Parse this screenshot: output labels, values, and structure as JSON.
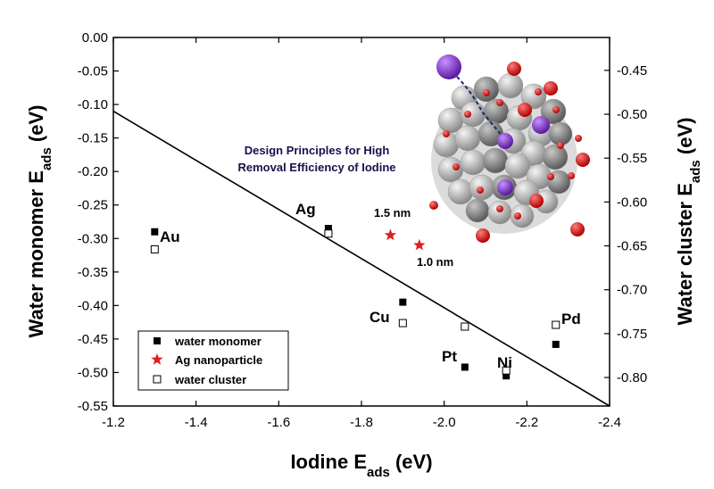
{
  "chart_data": {
    "type": "scatter",
    "xlabel": "Iodine E",
    "xlabel_sub": "ads",
    "xlabel_unit": " (eV)",
    "ylabel": "Water monomer E",
    "ylabel_sub": "ads",
    "ylabel_unit": " (eV)",
    "y2label": "Water cluster E",
    "y2label_sub": "ads",
    "y2label_unit": " (eV)",
    "xlim": [
      -1.2,
      -2.4
    ],
    "ylim": [
      0.0,
      -0.55
    ],
    "y2lim": [
      -0.4125,
      -0.8325
    ],
    "x_ticks": [
      "-1.2",
      "-1.4",
      "-1.6",
      "-1.8",
      "-2.0",
      "-2.2",
      "-2.4"
    ],
    "y_ticks": [
      "0.00",
      "-0.05",
      "-0.10",
      "-0.15",
      "-0.20",
      "-0.25",
      "-0.30",
      "-0.35",
      "-0.40",
      "-0.45",
      "-0.50",
      "-0.55"
    ],
    "y2_ticks": [
      "-0.45",
      "-0.50",
      "-0.55",
      "-0.60",
      "-0.65",
      "-0.70",
      "-0.75",
      "-0.80"
    ],
    "grid": false,
    "legend_position": "bottom-left",
    "series": [
      {
        "name": "water monomer",
        "marker": "filled-square",
        "color": "#000000",
        "axis": "left",
        "points": [
          {
            "label": "Au",
            "x": -1.3,
            "y": -0.29
          },
          {
            "label": "Ag",
            "x": -1.72,
            "y": -0.285
          },
          {
            "label": "Cu",
            "x": -1.9,
            "y": -0.395
          },
          {
            "label": "Pt",
            "x": -2.05,
            "y": -0.492
          },
          {
            "label": "Ni",
            "x": -2.15,
            "y": -0.505
          },
          {
            "label": "Pd",
            "x": -2.27,
            "y": -0.458
          }
        ]
      },
      {
        "name": "Ag nanoparticle",
        "marker": "star",
        "color": "#e02020",
        "axis": "left",
        "points": [
          {
            "label": "1.5 nm",
            "x": -1.87,
            "y": -0.295
          },
          {
            "label": "1.0 nm",
            "x": -1.94,
            "y": -0.31
          }
        ]
      },
      {
        "name": "water cluster",
        "marker": "open-square",
        "color": "#000000",
        "axis": "right",
        "points": [
          {
            "label": "Au",
            "x": -1.3,
            "y": -0.654
          },
          {
            "label": "Ag",
            "x": -1.72,
            "y": -0.636
          },
          {
            "label": "Cu",
            "x": -1.9,
            "y": -0.738
          },
          {
            "label": "Pt",
            "x": -2.05,
            "y": -0.742
          },
          {
            "label": "Ni",
            "x": -2.15,
            "y": -0.792
          },
          {
            "label": "Pd",
            "x": -2.27,
            "y": -0.74
          }
        ]
      }
    ],
    "trend_line": {
      "x1": -1.2,
      "y1": -0.11,
      "x2": -2.4,
      "y2": -0.55
    },
    "metal_labels": [
      "Au",
      "Ag",
      "Cu",
      "Pt",
      "Ni",
      "Pd"
    ],
    "size_labels": [
      "1.5 nm",
      "1.0 nm"
    ],
    "annotation": [
      "Design Principles for High",
      "Removal Efficiency of Iodine"
    ]
  }
}
